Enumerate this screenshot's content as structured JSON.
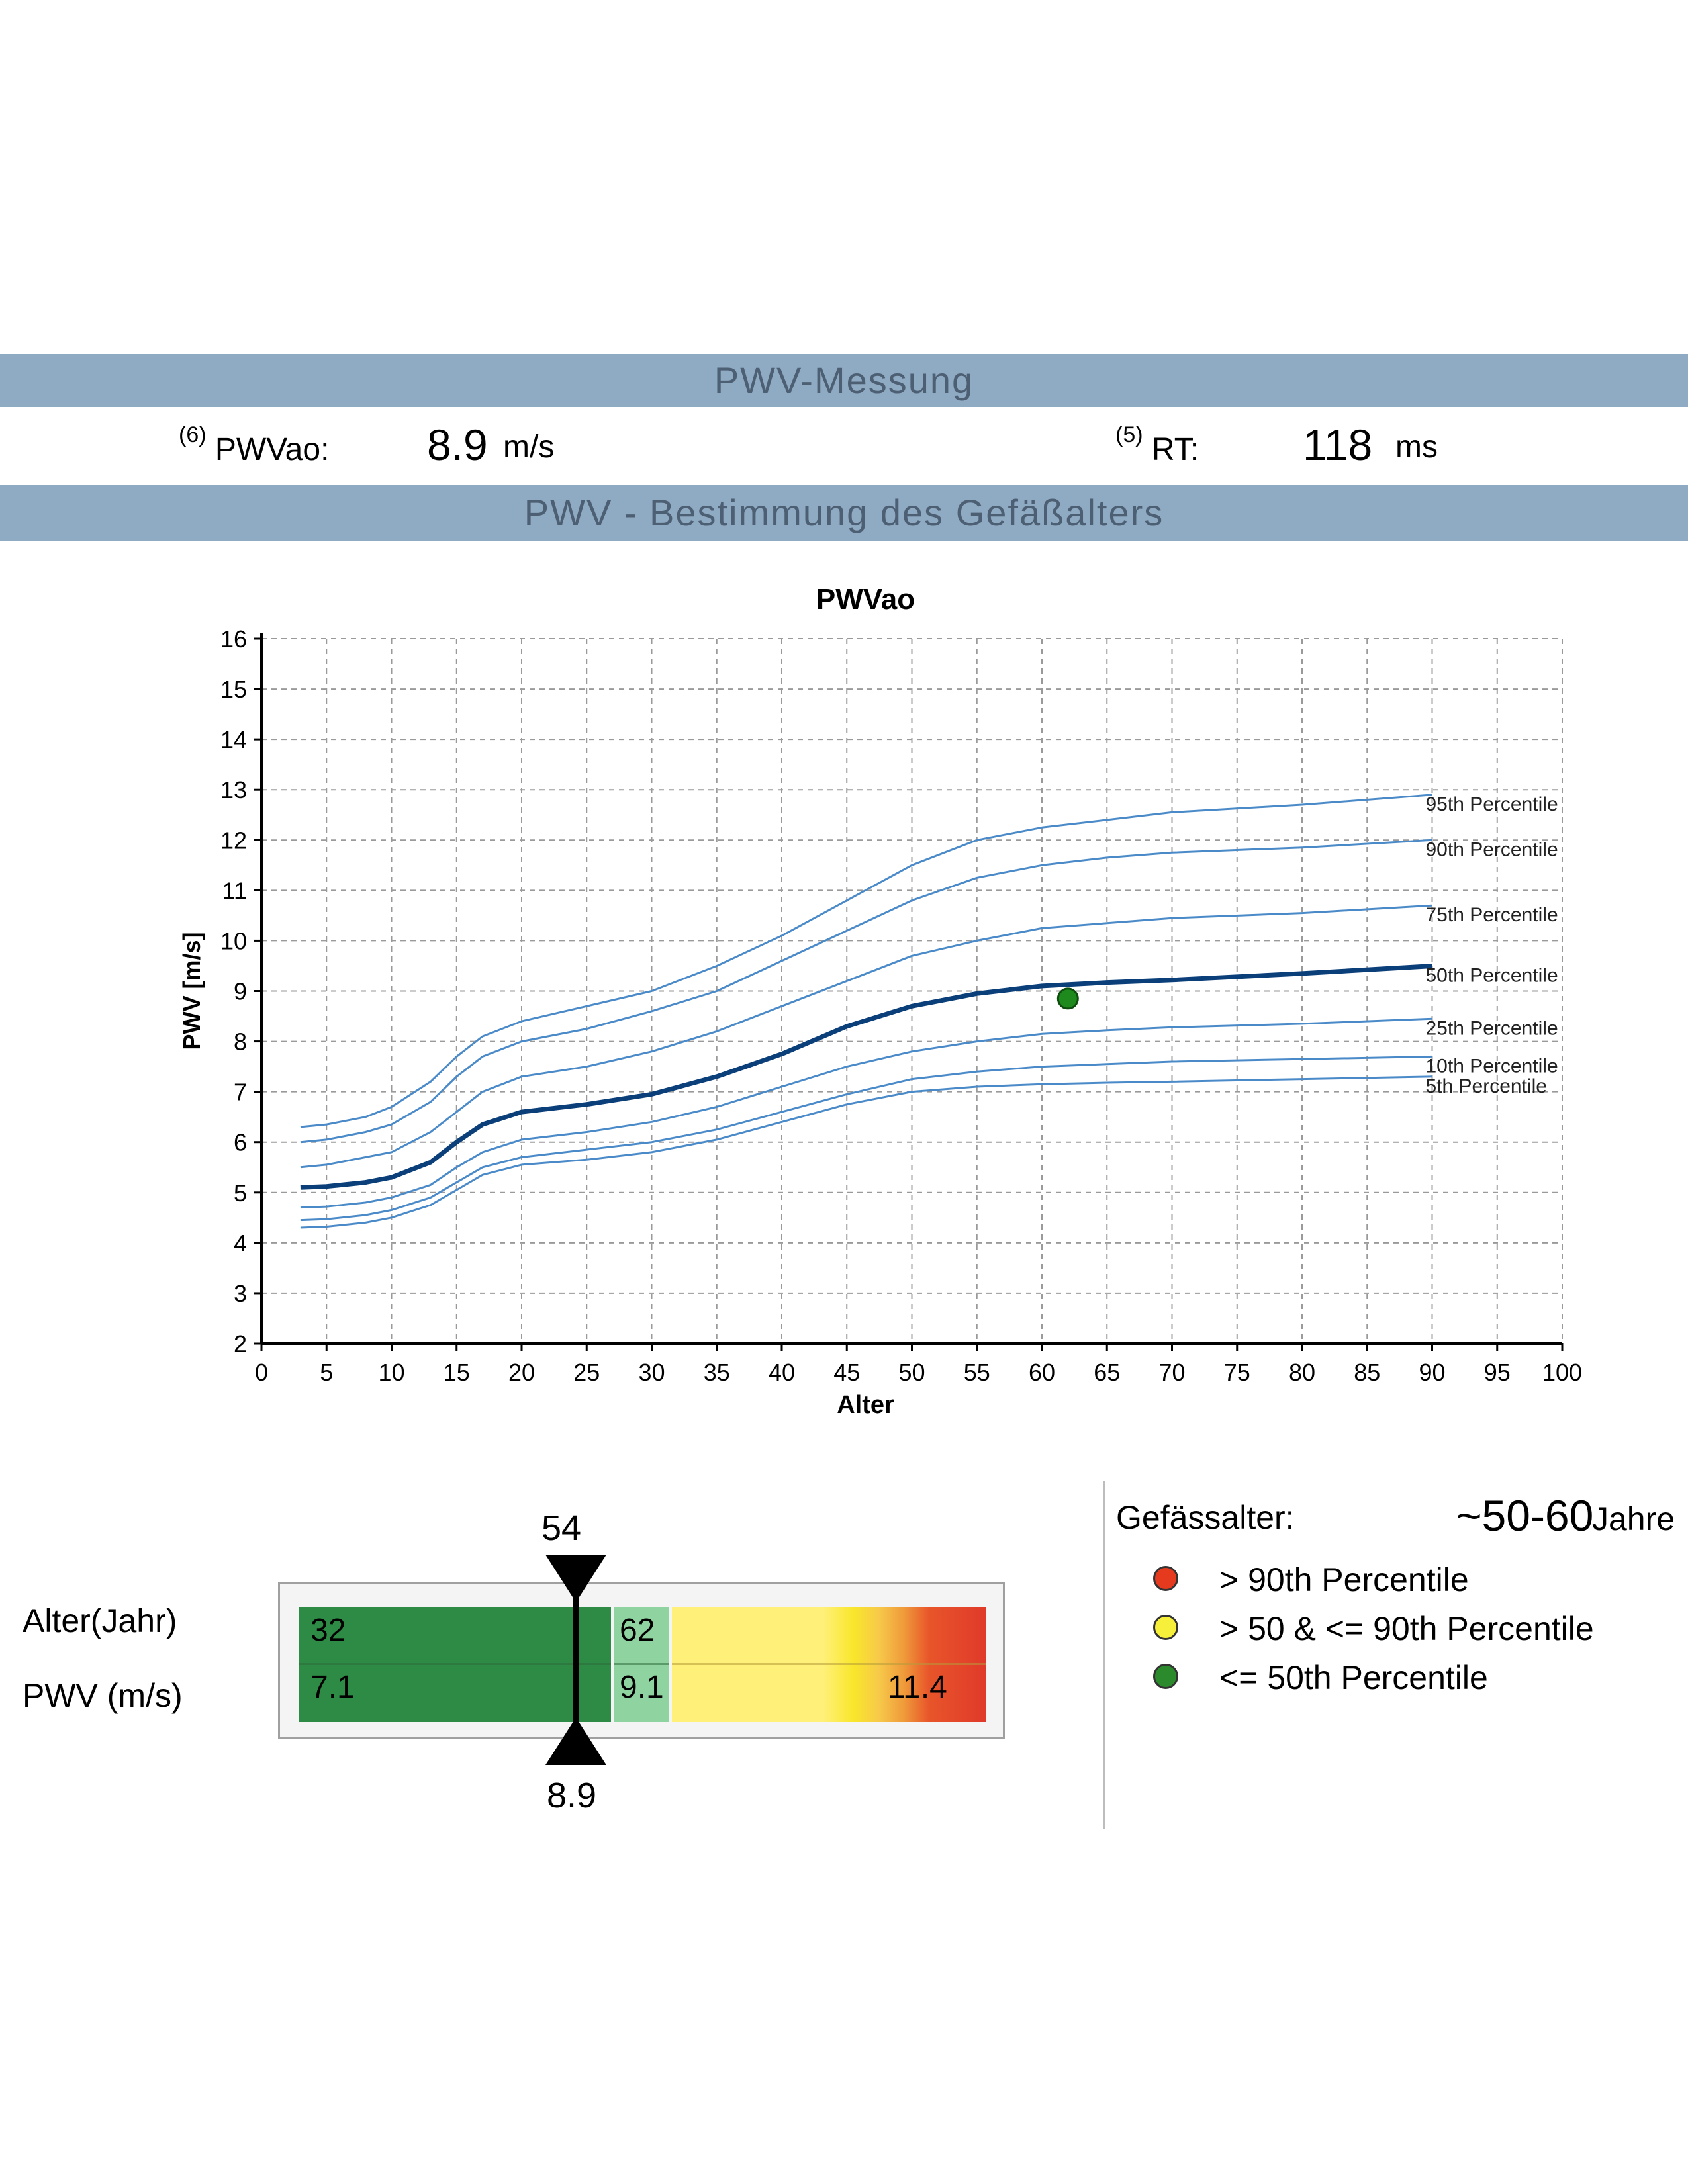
{
  "sections": {
    "measurement_title": "PWV-Messung",
    "vascular_age_title": "PWV - Bestimmung des Gefäßalters"
  },
  "measurements": {
    "pwvao": {
      "ref": "(6)",
      "label": "PWVao:",
      "value": "8.9",
      "unit": "m/s"
    },
    "rt": {
      "ref": "(5)",
      "label": "RT:",
      "value": "118",
      "unit": "ms"
    }
  },
  "chart_data": {
    "type": "line",
    "title": "PWVao",
    "xlabel": "Alter",
    "ylabel": "PWV [m/s]",
    "xlim": [
      0,
      100
    ],
    "ylim": [
      2,
      16
    ],
    "x_ticks": [
      "0",
      "5",
      "10",
      "15",
      "20",
      "25",
      "30",
      "35",
      "40",
      "45",
      "50",
      "55",
      "60",
      "65",
      "70",
      "75",
      "80",
      "85",
      "90",
      "95",
      "100"
    ],
    "y_ticks": [
      "2",
      "3",
      "4",
      "5",
      "6",
      "7",
      "8",
      "9",
      "10",
      "11",
      "12",
      "13",
      "14",
      "15",
      "16"
    ],
    "grid": true,
    "x": [
      3,
      5,
      8,
      10,
      13,
      15,
      17,
      20,
      25,
      30,
      35,
      40,
      45,
      50,
      55,
      60,
      65,
      70,
      80,
      90
    ],
    "series": [
      {
        "name": "95th Percentile",
        "emphasis": false,
        "values": [
          6.3,
          6.35,
          6.5,
          6.7,
          7.2,
          7.7,
          8.1,
          8.4,
          8.7,
          9.0,
          9.5,
          10.1,
          10.8,
          11.5,
          12.0,
          12.25,
          12.4,
          12.55,
          12.7,
          12.9
        ]
      },
      {
        "name": "90th Percentile",
        "emphasis": false,
        "values": [
          6.0,
          6.05,
          6.2,
          6.35,
          6.8,
          7.3,
          7.7,
          8.0,
          8.25,
          8.6,
          9.0,
          9.6,
          10.2,
          10.8,
          11.25,
          11.5,
          11.65,
          11.75,
          11.85,
          12.0
        ]
      },
      {
        "name": "75th Percentile",
        "emphasis": false,
        "values": [
          5.5,
          5.55,
          5.7,
          5.8,
          6.2,
          6.6,
          7.0,
          7.3,
          7.5,
          7.8,
          8.2,
          8.7,
          9.2,
          9.7,
          10.0,
          10.25,
          10.35,
          10.45,
          10.55,
          10.7
        ]
      },
      {
        "name": "50th Percentile",
        "emphasis": true,
        "values": [
          5.1,
          5.12,
          5.2,
          5.3,
          5.6,
          6.0,
          6.35,
          6.6,
          6.75,
          6.95,
          7.3,
          7.75,
          8.3,
          8.7,
          8.95,
          9.1,
          9.17,
          9.22,
          9.35,
          9.5
        ]
      },
      {
        "name": "25th Percentile",
        "emphasis": false,
        "values": [
          4.7,
          4.72,
          4.8,
          4.9,
          5.15,
          5.5,
          5.8,
          6.05,
          6.2,
          6.4,
          6.7,
          7.1,
          7.5,
          7.8,
          8.0,
          8.15,
          8.22,
          8.28,
          8.35,
          8.45
        ]
      },
      {
        "name": "10th Percentile",
        "emphasis": false,
        "values": [
          4.45,
          4.47,
          4.55,
          4.65,
          4.9,
          5.2,
          5.5,
          5.7,
          5.85,
          6.0,
          6.25,
          6.6,
          6.95,
          7.25,
          7.4,
          7.5,
          7.55,
          7.6,
          7.65,
          7.7
        ]
      },
      {
        "name": "5th Percentile",
        "emphasis": false,
        "values": [
          4.3,
          4.32,
          4.4,
          4.5,
          4.75,
          5.05,
          5.35,
          5.55,
          5.65,
          5.8,
          6.05,
          6.4,
          6.75,
          7.0,
          7.1,
          7.15,
          7.18,
          7.2,
          7.25,
          7.3
        ]
      }
    ],
    "patient_point": {
      "x": 62,
      "y": 8.85,
      "color": "#1e8a1e"
    },
    "colors": {
      "line": "#4a8ac8",
      "line_emphasis": "#0b3f7a",
      "grid": "#9a9a9a",
      "axis": "#000000"
    }
  },
  "gauge": {
    "row_labels": {
      "age": "Alter(Jahr)",
      "pwv": "PWV (m/s)"
    },
    "marker_age": "54",
    "marker_pwv": "8.9",
    "segments": {
      "green": {
        "age": "32",
        "pwv": "7.1"
      },
      "light_green": {
        "age": "62",
        "pwv": "9.1"
      },
      "red": {
        "pwv": "11.4"
      }
    }
  },
  "vascular_age": {
    "label": "Gefässalter:",
    "value": "~50-60",
    "unit": "Jahre"
  },
  "legend": [
    {
      "color": "#e53a1e",
      "label": "> 90th Percentile"
    },
    {
      "color": "#f7f03a",
      "label": "> 50 & <= 90th Percentile"
    },
    {
      "color": "#2b8a2b",
      "label": "<= 50th Percentile"
    }
  ]
}
